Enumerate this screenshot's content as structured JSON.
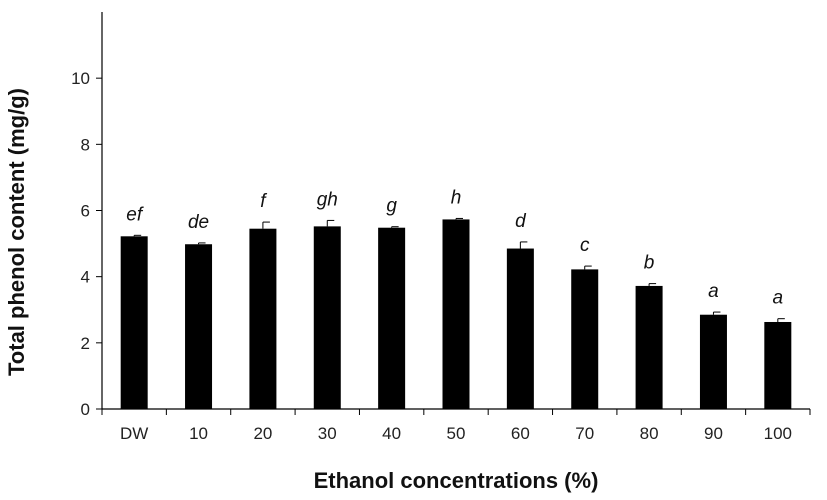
{
  "chart_data": {
    "type": "bar",
    "title": "",
    "xlabel": "Ethanol concentrations (%)",
    "ylabel": "Total phenol content (mg/g)",
    "ylim": [
      0,
      12
    ],
    "yticks": [
      0,
      2,
      4,
      6,
      8,
      10
    ],
    "grid": false,
    "legend": "none",
    "bar_color": "#000000",
    "categories": [
      "DW",
      "10",
      "20",
      "30",
      "40",
      "50",
      "60",
      "70",
      "80",
      "90",
      "100"
    ],
    "values": [
      5.22,
      4.98,
      5.45,
      5.52,
      5.48,
      5.73,
      4.85,
      4.22,
      3.72,
      2.85,
      2.63
    ],
    "errors": [
      0.03,
      0.04,
      0.2,
      0.18,
      0.03,
      0.03,
      0.2,
      0.1,
      0.07,
      0.08,
      0.1
    ],
    "significance_labels": [
      "ef",
      "de",
      "f",
      "gh",
      "g",
      "h",
      "d",
      "c",
      "b",
      "a",
      "a"
    ]
  }
}
